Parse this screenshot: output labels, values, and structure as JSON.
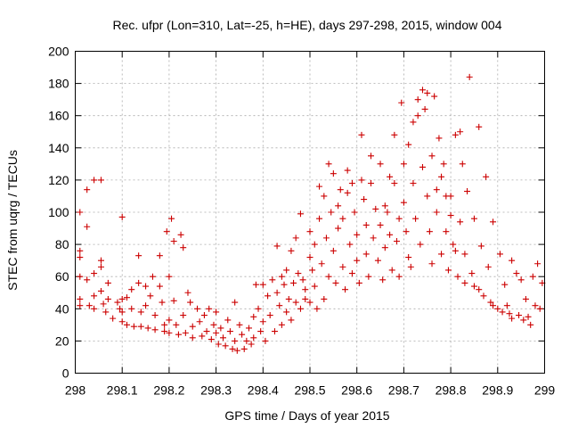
{
  "chart_data": {
    "type": "scatter",
    "title": "Rec. ufpr (Lon=310, Lat=-25, h=HE), days 297-298, 2015, window 004",
    "xlabel": "GPS time / Days of year 2015",
    "ylabel": "STEC from uqrg / TECUs",
    "xlim": [
      298,
      299
    ],
    "ylim": [
      0,
      200
    ],
    "xticks": [
      298,
      298.1,
      298.2,
      298.3,
      298.4,
      298.5,
      298.6,
      298.7,
      298.8,
      298.9,
      299
    ],
    "xtick_labels": [
      "298",
      "298.1",
      "298.2",
      "298.3",
      "298.4",
      "298.5",
      "298.6",
      "298.7",
      "298.8",
      "298.9",
      "299"
    ],
    "yticks": [
      0,
      20,
      40,
      60,
      80,
      100,
      120,
      140,
      160,
      180,
      200
    ],
    "ytick_labels": [
      "0",
      "20",
      "40",
      "60",
      "80",
      "100",
      "120",
      "140",
      "160",
      "180",
      "200"
    ],
    "marker": "plus",
    "color": "#cc0000",
    "series": [
      {
        "name": "STEC",
        "points": [
          [
            298.01,
            100
          ],
          [
            298.01,
            76
          ],
          [
            298.01,
            72
          ],
          [
            298.01,
            60
          ],
          [
            298.01,
            46
          ],
          [
            298.01,
            42
          ],
          [
            298.025,
            114
          ],
          [
            298.025,
            91
          ],
          [
            298.025,
            58
          ],
          [
            298.03,
            42
          ],
          [
            298.04,
            120
          ],
          [
            298.04,
            62
          ],
          [
            298.04,
            48
          ],
          [
            298.04,
            40
          ],
          [
            298.055,
            120
          ],
          [
            298.055,
            70
          ],
          [
            298.055,
            66
          ],
          [
            298.055,
            51
          ],
          [
            298.06,
            43
          ],
          [
            298.065,
            38
          ],
          [
            298.07,
            56
          ],
          [
            298.07,
            46
          ],
          [
            298.08,
            34
          ],
          [
            298.09,
            44
          ],
          [
            298.095,
            40
          ],
          [
            298.1,
            97
          ],
          [
            298.1,
            46
          ],
          [
            298.1,
            38
          ],
          [
            298.1,
            32
          ],
          [
            298.11,
            47
          ],
          [
            298.11,
            30
          ],
          [
            298.12,
            52
          ],
          [
            298.12,
            40
          ],
          [
            298.125,
            29
          ],
          [
            298.135,
            73
          ],
          [
            298.135,
            56
          ],
          [
            298.14,
            38
          ],
          [
            298.14,
            29
          ],
          [
            298.15,
            54
          ],
          [
            298.15,
            42
          ],
          [
            298.155,
            28
          ],
          [
            298.16,
            48
          ],
          [
            298.165,
            60
          ],
          [
            298.17,
            36
          ],
          [
            298.17,
            27
          ],
          [
            298.18,
            73
          ],
          [
            298.18,
            54
          ],
          [
            298.185,
            44
          ],
          [
            298.19,
            30
          ],
          [
            298.19,
            26
          ],
          [
            298.195,
            88
          ],
          [
            298.2,
            60
          ],
          [
            298.2,
            33
          ],
          [
            298.2,
            25
          ],
          [
            298.205,
            96
          ],
          [
            298.21,
            82
          ],
          [
            298.21,
            45
          ],
          [
            298.215,
            30
          ],
          [
            298.22,
            24
          ],
          [
            298.225,
            86
          ],
          [
            298.23,
            78
          ],
          [
            298.23,
            36
          ],
          [
            298.235,
            25
          ],
          [
            298.24,
            50
          ],
          [
            298.245,
            44
          ],
          [
            298.25,
            29
          ],
          [
            298.25,
            22
          ],
          [
            298.26,
            40
          ],
          [
            298.265,
            32
          ],
          [
            298.27,
            23
          ],
          [
            298.275,
            36
          ],
          [
            298.28,
            26
          ],
          [
            298.285,
            40
          ],
          [
            298.29,
            21
          ],
          [
            298.295,
            30
          ],
          [
            298.3,
            38
          ],
          [
            298.3,
            25
          ],
          [
            298.305,
            18
          ],
          [
            298.31,
            28
          ],
          [
            298.315,
            22
          ],
          [
            298.32,
            17
          ],
          [
            298.325,
            33
          ],
          [
            298.33,
            26
          ],
          [
            298.335,
            15
          ],
          [
            298.34,
            44
          ],
          [
            298.34,
            20
          ],
          [
            298.345,
            14
          ],
          [
            298.35,
            30
          ],
          [
            298.355,
            24
          ],
          [
            298.36,
            15
          ],
          [
            298.365,
            20
          ],
          [
            298.37,
            28
          ],
          [
            298.375,
            18
          ],
          [
            298.38,
            35
          ],
          [
            298.38,
            22
          ],
          [
            298.385,
            55
          ],
          [
            298.39,
            40
          ],
          [
            298.395,
            26
          ],
          [
            298.4,
            55
          ],
          [
            298.4,
            32
          ],
          [
            298.405,
            20
          ],
          [
            298.41,
            48
          ],
          [
            298.415,
            36
          ],
          [
            298.42,
            58
          ],
          [
            298.425,
            26
          ],
          [
            298.43,
            79
          ],
          [
            298.43,
            50
          ],
          [
            298.435,
            42
          ],
          [
            298.44,
            60
          ],
          [
            298.44,
            30
          ],
          [
            298.445,
            55
          ],
          [
            298.45,
            64
          ],
          [
            298.45,
            38
          ],
          [
            298.455,
            46
          ],
          [
            298.46,
            76
          ],
          [
            298.46,
            33
          ],
          [
            298.465,
            56
          ],
          [
            298.47,
            84
          ],
          [
            298.47,
            44
          ],
          [
            298.475,
            62
          ],
          [
            298.48,
            99
          ],
          [
            298.48,
            40
          ],
          [
            298.485,
            58
          ],
          [
            298.49,
            52
          ],
          [
            298.49,
            46
          ],
          [
            298.5,
            88
          ],
          [
            298.5,
            72
          ],
          [
            298.5,
            44
          ],
          [
            298.505,
            64
          ],
          [
            298.51,
            80
          ],
          [
            298.51,
            54
          ],
          [
            298.515,
            40
          ],
          [
            298.52,
            116
          ],
          [
            298.52,
            96
          ],
          [
            298.525,
            68
          ],
          [
            298.53,
            110
          ],
          [
            298.53,
            46
          ],
          [
            298.535,
            84
          ],
          [
            298.54,
            130
          ],
          [
            298.54,
            60
          ],
          [
            298.545,
            100
          ],
          [
            298.55,
            124
          ],
          [
            298.55,
            76
          ],
          [
            298.555,
            56
          ],
          [
            298.56,
            104
          ],
          [
            298.56,
            90
          ],
          [
            298.565,
            114
          ],
          [
            298.57,
            96
          ],
          [
            298.57,
            66
          ],
          [
            298.575,
            52
          ],
          [
            298.58,
            126
          ],
          [
            298.58,
            112
          ],
          [
            298.585,
            80
          ],
          [
            298.59,
            118
          ],
          [
            298.59,
            62
          ],
          [
            298.595,
            100
          ],
          [
            298.6,
            86
          ],
          [
            298.6,
            70
          ],
          [
            298.605,
            56
          ],
          [
            298.61,
            148
          ],
          [
            298.61,
            120
          ],
          [
            298.615,
            108
          ],
          [
            298.62,
            92
          ],
          [
            298.62,
            74
          ],
          [
            298.625,
            60
          ],
          [
            298.63,
            135
          ],
          [
            298.63,
            118
          ],
          [
            298.635,
            84
          ],
          [
            298.64,
            102
          ],
          [
            298.645,
            70
          ],
          [
            298.65,
            130
          ],
          [
            298.65,
            92
          ],
          [
            298.655,
            58
          ],
          [
            298.66,
            104
          ],
          [
            298.66,
            78
          ],
          [
            298.665,
            100
          ],
          [
            298.67,
            122
          ],
          [
            298.67,
            86
          ],
          [
            298.675,
            64
          ],
          [
            298.68,
            148
          ],
          [
            298.68,
            118
          ],
          [
            298.685,
            82
          ],
          [
            298.69,
            96
          ],
          [
            298.69,
            60
          ],
          [
            298.695,
            168
          ],
          [
            298.7,
            130
          ],
          [
            298.7,
            106
          ],
          [
            298.705,
            88
          ],
          [
            298.71,
            142
          ],
          [
            298.71,
            72
          ],
          [
            298.715,
            66
          ],
          [
            298.72,
            156
          ],
          [
            298.72,
            118
          ],
          [
            298.725,
            96
          ],
          [
            298.73,
            170
          ],
          [
            298.73,
            160
          ],
          [
            298.735,
            80
          ],
          [
            298.74,
            176
          ],
          [
            298.74,
            128
          ],
          [
            298.745,
            164
          ],
          [
            298.75,
            174
          ],
          [
            298.75,
            110
          ],
          [
            298.755,
            88
          ],
          [
            298.76,
            135
          ],
          [
            298.76,
            68
          ],
          [
            298.765,
            172
          ],
          [
            298.77,
            114
          ],
          [
            298.77,
            100
          ],
          [
            298.775,
            146
          ],
          [
            298.78,
            122
          ],
          [
            298.78,
            74
          ],
          [
            298.785,
            130
          ],
          [
            298.79,
            110
          ],
          [
            298.79,
            88
          ],
          [
            298.795,
            64
          ],
          [
            298.8,
            110
          ],
          [
            298.8,
            98
          ],
          [
            298.805,
            80
          ],
          [
            298.81,
            148
          ],
          [
            298.81,
            76
          ],
          [
            298.815,
            60
          ],
          [
            298.82,
            150
          ],
          [
            298.82,
            94
          ],
          [
            298.825,
            130
          ],
          [
            298.83,
            74
          ],
          [
            298.83,
            56
          ],
          [
            298.835,
            113
          ],
          [
            298.84,
            184
          ],
          [
            298.845,
            62
          ],
          [
            298.85,
            96
          ],
          [
            298.85,
            54
          ],
          [
            298.86,
            153
          ],
          [
            298.86,
            52
          ],
          [
            298.865,
            79
          ],
          [
            298.87,
            48
          ],
          [
            298.875,
            122
          ],
          [
            298.88,
            66
          ],
          [
            298.885,
            44
          ],
          [
            298.89,
            94
          ],
          [
            298.89,
            42
          ],
          [
            298.9,
            40
          ],
          [
            298.905,
            74
          ],
          [
            298.91,
            38
          ],
          [
            298.915,
            55
          ],
          [
            298.92,
            42
          ],
          [
            298.925,
            37
          ],
          [
            298.93,
            70
          ],
          [
            298.93,
            34
          ],
          [
            298.94,
            62
          ],
          [
            298.945,
            36
          ],
          [
            298.95,
            58
          ],
          [
            298.955,
            33
          ],
          [
            298.96,
            46
          ],
          [
            298.965,
            35
          ],
          [
            298.97,
            30
          ],
          [
            298.975,
            60
          ],
          [
            298.98,
            42
          ],
          [
            298.985,
            68
          ],
          [
            298.99,
            40
          ],
          [
            298.995,
            56
          ]
        ]
      }
    ]
  }
}
